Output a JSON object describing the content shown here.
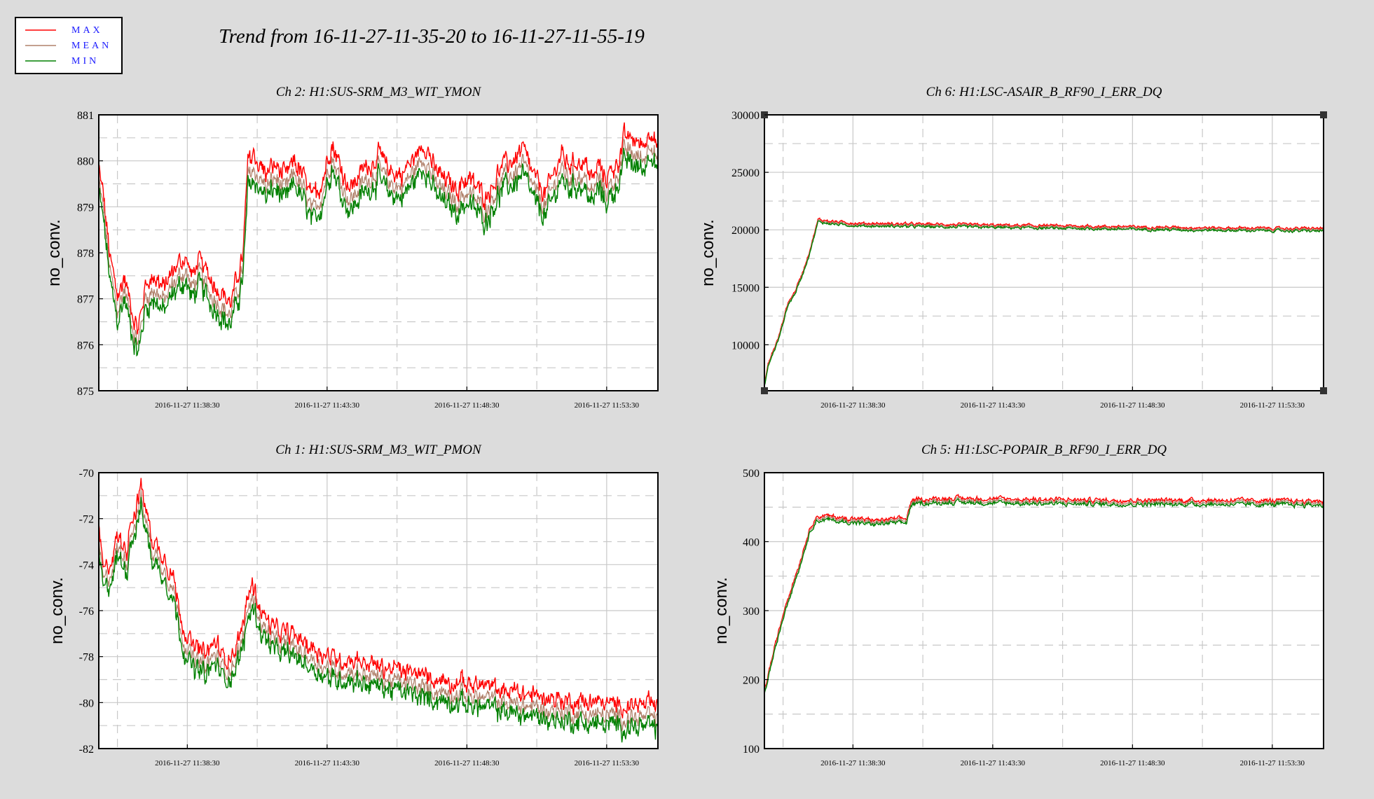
{
  "title": "Trend from 16-11-27-11-35-20 to 16-11-27-11-55-19",
  "legend": [
    {
      "label": "MAX",
      "color": "#ff0000"
    },
    {
      "label": "MEAN",
      "color": "#b0806a"
    },
    {
      "label": "MIN",
      "color": "#008000"
    }
  ],
  "colors": {
    "max": "#ff0000",
    "mean": "#b0806a",
    "min": "#008000",
    "legend_text": "#1a1aff",
    "grid": "#c8c8c8"
  },
  "chart_data": [
    {
      "type": "line",
      "title": "Ch 2: H1:SUS-SRM_M3_WIT_YMON",
      "ylabel": "no_conv.",
      "xlim": [
        0,
        1200
      ],
      "ylim": [
        875,
        881
      ],
      "yticks": [
        "881",
        "880",
        "879",
        "878",
        "877",
        "876",
        "875"
      ],
      "yticks_values": [
        881,
        880,
        879,
        878,
        877,
        876,
        875
      ],
      "xticks": [
        "2016-11-27 11:38:30",
        "2016-11-27 11:43:30",
        "2016-11-27 11:48:30",
        "2016-11-27 11:53:30"
      ],
      "xticks_values": [
        190,
        490,
        790,
        1090
      ],
      "band": 0.28,
      "series": [
        {
          "name": "MIN",
          "keypoints": [
            [
              0,
              879.3
            ],
            [
              10,
              878.7
            ],
            [
              25,
              877.3
            ],
            [
              40,
              876.5
            ],
            [
              55,
              877.0
            ],
            [
              75,
              876.1
            ],
            [
              85,
              875.8
            ],
            [
              100,
              876.8
            ],
            [
              120,
              877.0
            ],
            [
              140,
              876.7
            ],
            [
              160,
              877.1
            ],
            [
              185,
              877.4
            ],
            [
              200,
              877.0
            ],
            [
              215,
              877.3
            ],
            [
              240,
              876.9
            ],
            [
              260,
              876.7
            ],
            [
              280,
              876.4
            ],
            [
              295,
              876.8
            ],
            [
              310,
              877.5
            ],
            [
              320,
              879.4
            ],
            [
              330,
              879.6
            ],
            [
              360,
              879.2
            ],
            [
              380,
              879.4
            ],
            [
              400,
              879.1
            ],
            [
              420,
              879.5
            ],
            [
              440,
              879.1
            ],
            [
              460,
              878.6
            ],
            [
              480,
              879.1
            ],
            [
              500,
              879.9
            ],
            [
              520,
              879.3
            ],
            [
              540,
              878.9
            ],
            [
              560,
              879.2
            ],
            [
              580,
              879.4
            ],
            [
              600,
              879.6
            ],
            [
              620,
              879.3
            ],
            [
              650,
              879.2
            ],
            [
              680,
              879.6
            ],
            [
              700,
              879.9
            ],
            [
              720,
              879.3
            ],
            [
              750,
              879.0
            ],
            [
              770,
              878.9
            ],
            [
              790,
              879.1
            ],
            [
              810,
              878.9
            ],
            [
              830,
              878.7
            ],
            [
              850,
              879.1
            ],
            [
              870,
              879.4
            ],
            [
              890,
              879.5
            ],
            [
              910,
              879.7
            ],
            [
              940,
              879.0
            ],
            [
              960,
              878.8
            ],
            [
              980,
              879.3
            ],
            [
              990,
              879.6
            ],
            [
              1010,
              879.4
            ],
            [
              1030,
              879.5
            ],
            [
              1050,
              879.3
            ],
            [
              1060,
              879.0
            ],
            [
              1070,
              879.4
            ],
            [
              1090,
              879.1
            ],
            [
              1110,
              879.4
            ],
            [
              1130,
              880.0
            ],
            [
              1150,
              879.9
            ],
            [
              1170,
              879.8
            ],
            [
              1185,
              880.3
            ],
            [
              1195,
              879.9
            ],
            [
              1200,
              879.6
            ]
          ]
        }
      ]
    },
    {
      "type": "line",
      "title": "Ch 6: H1:LSC-ASAIR_B_RF90_I_ERR_DQ",
      "ylabel": "no_conv.",
      "xlim": [
        0,
        1200
      ],
      "ylim": [
        6000,
        30000
      ],
      "yticks": [
        "30000",
        "25000",
        "20000",
        "15000",
        "10000"
      ],
      "yticks_values": [
        30000,
        25000,
        20000,
        15000,
        10000
      ],
      "xticks": [
        "2016-11-27 11:38:30",
        "2016-11-27 11:43:30",
        "2016-11-27 11:48:30",
        "2016-11-27 11:53:30"
      ],
      "xticks_values": [
        190,
        490,
        790,
        1090
      ],
      "band": 150,
      "series": [
        {
          "name": "MEAN",
          "keypoints": [
            [
              0,
              6500
            ],
            [
              8,
              8200
            ],
            [
              15,
              9000
            ],
            [
              30,
              10500
            ],
            [
              40,
              12000
            ],
            [
              50,
              13500
            ],
            [
              65,
              14500
            ],
            [
              80,
              16000
            ],
            [
              95,
              17800
            ],
            [
              110,
              20000
            ],
            [
              115,
              20800
            ],
            [
              130,
              20700
            ],
            [
              150,
              20600
            ],
            [
              200,
              20450
            ],
            [
              300,
              20400
            ],
            [
              400,
              20350
            ],
            [
              600,
              20250
            ],
            [
              800,
              20150
            ],
            [
              1000,
              20050
            ],
            [
              1200,
              20000
            ]
          ]
        }
      ]
    },
    {
      "type": "line",
      "title": "Ch 1: H1:SUS-SRM_M3_WIT_PMON",
      "ylabel": "no_conv.",
      "xlim": [
        0,
        1200
      ],
      "ylim": [
        -82,
        -70
      ],
      "yticks": [
        "-70",
        "-72",
        "-74",
        "-76",
        "-78",
        "-80",
        "-82"
      ],
      "yticks_values": [
        -70,
        -72,
        -74,
        -76,
        -78,
        -80,
        -82
      ],
      "xticks": [
        "2016-11-27 11:38:30",
        "2016-11-27 11:43:30",
        "2016-11-27 11:48:30",
        "2016-11-27 11:53:30"
      ],
      "xticks_values": [
        190,
        490,
        790,
        1090
      ],
      "band": 0.5,
      "series": [
        {
          "name": "MIN",
          "keypoints": [
            [
              0,
              -73.4
            ],
            [
              10,
              -75.2
            ],
            [
              25,
              -74.8
            ],
            [
              40,
              -73.7
            ],
            [
              60,
              -74.2
            ],
            [
              70,
              -72.8
            ],
            [
              80,
              -72.5
            ],
            [
              90,
              -71.5
            ],
            [
              100,
              -72.4
            ],
            [
              115,
              -73.8
            ],
            [
              140,
              -74.5
            ],
            [
              160,
              -75.5
            ],
            [
              180,
              -77.5
            ],
            [
              200,
              -78.5
            ],
            [
              230,
              -78.8
            ],
            [
              250,
              -78.3
            ],
            [
              270,
              -79.0
            ],
            [
              290,
              -78.7
            ],
            [
              310,
              -77.6
            ],
            [
              320,
              -76.3
            ],
            [
              330,
              -75.8
            ],
            [
              350,
              -77.0
            ],
            [
              380,
              -77.8
            ],
            [
              420,
              -78.0
            ],
            [
              460,
              -78.5
            ],
            [
              500,
              -79.0
            ],
            [
              540,
              -79.0
            ],
            [
              600,
              -79.3
            ],
            [
              700,
              -79.8
            ],
            [
              800,
              -80.1
            ],
            [
              900,
              -80.5
            ],
            [
              1000,
              -80.8
            ],
            [
              1100,
              -81.0
            ],
            [
              1200,
              -81.1
            ]
          ]
        }
      ]
    },
    {
      "type": "line",
      "title": "Ch 5: H1:LSC-POPAIR_B_RF90_I_ERR_DQ",
      "ylabel": "no_conv.",
      "xlim": [
        0,
        1200
      ],
      "ylim": [
        100,
        500
      ],
      "yticks": [
        "500",
        "400",
        "300",
        "200",
        "100"
      ],
      "yticks_values": [
        500,
        400,
        300,
        200,
        100
      ],
      "xticks": [
        "2016-11-27 11:38:30",
        "2016-11-27 11:43:30",
        "2016-11-27 11:48:30",
        "2016-11-27 11:53:30"
      ],
      "xticks_values": [
        190,
        490,
        790,
        1090
      ],
      "band": 4,
      "series": [
        {
          "name": "MEAN",
          "keypoints": [
            [
              0,
              180
            ],
            [
              8,
              205
            ],
            [
              15,
              225
            ],
            [
              30,
              265
            ],
            [
              45,
              305
            ],
            [
              60,
              335
            ],
            [
              75,
              365
            ],
            [
              90,
              400
            ],
            [
              100,
              420
            ],
            [
              110,
              432
            ],
            [
              130,
              435
            ],
            [
              160,
              432
            ],
            [
              200,
              430
            ],
            [
              240,
              428
            ],
            [
              280,
              430
            ],
            [
              305,
              430
            ],
            [
              310,
              445
            ],
            [
              315,
              455
            ],
            [
              330,
              458
            ],
            [
              400,
              460
            ],
            [
              600,
              458
            ],
            [
              800,
              457
            ],
            [
              1000,
              457
            ],
            [
              1200,
              456
            ]
          ]
        }
      ]
    }
  ]
}
